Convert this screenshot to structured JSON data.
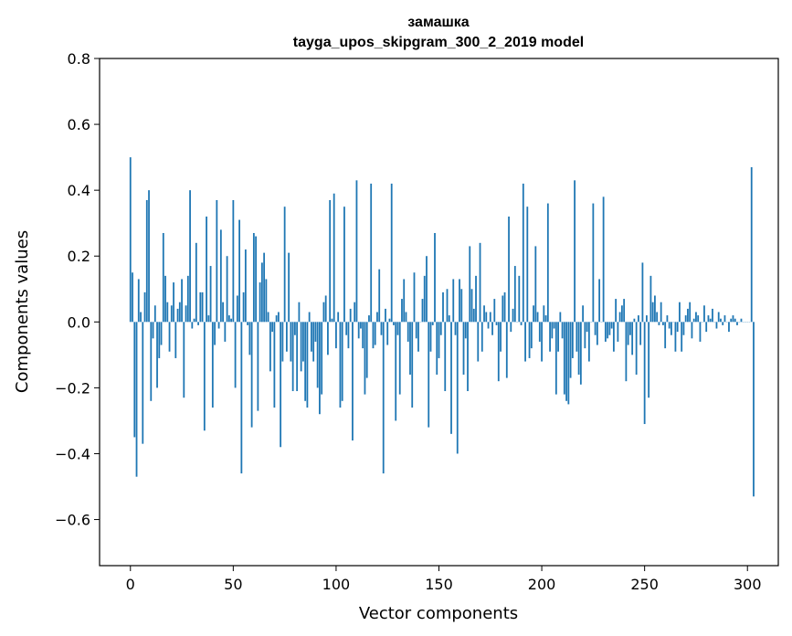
{
  "chart_data": {
    "type": "bar",
    "title": "замашка",
    "subtitle": "tayga_upos_skipgram_300_2_2019 model",
    "xlabel": "Vector components",
    "ylabel": "Components values",
    "xlim": [
      -15,
      315
    ],
    "ylim": [
      -0.74,
      0.8
    ],
    "xticks": [
      0,
      50,
      100,
      150,
      200,
      250,
      300
    ],
    "yticks": [
      -0.6,
      -0.4,
      -0.2,
      0.0,
      0.2,
      0.4,
      0.6,
      0.8
    ],
    "xtick_labels": [
      "0",
      "50",
      "100",
      "150",
      "200",
      "250",
      "300"
    ],
    "ytick_labels": [
      "−0.6",
      "−0.4",
      "−0.2",
      "0.0",
      "0.2",
      "0.4",
      "0.6",
      "0.8"
    ],
    "bar_color": "#1f77b4",
    "values": [
      0.5,
      0.15,
      -0.35,
      -0.47,
      0.13,
      0.03,
      -0.37,
      0.09,
      0.37,
      0.4,
      -0.24,
      -0.05,
      0.05,
      -0.2,
      -0.11,
      -0.07,
      0.27,
      0.14,
      0.06,
      -0.09,
      0.05,
      0.12,
      -0.11,
      0.04,
      0.06,
      0.13,
      -0.23,
      0.05,
      0.14,
      0.4,
      -0.02,
      0.01,
      0.24,
      -0.01,
      0.09,
      0.09,
      -0.33,
      0.32,
      0.02,
      0.17,
      -0.26,
      -0.07,
      0.37,
      -0.02,
      0.28,
      0.06,
      -0.06,
      0.2,
      0.02,
      0.01,
      0.37,
      -0.2,
      0.08,
      0.31,
      -0.46,
      0.09,
      0.22,
      -0.01,
      -0.1,
      -0.32,
      0.27,
      0.26,
      -0.27,
      0.12,
      0.18,
      0.21,
      0.13,
      0.03,
      -0.15,
      -0.03,
      -0.26,
      0.02,
      0.03,
      -0.38,
      -0.12,
      0.35,
      -0.09,
      0.21,
      -0.12,
      -0.21,
      -0.04,
      -0.21,
      0.06,
      -0.15,
      -0.12,
      -0.24,
      -0.26,
      0.03,
      -0.09,
      -0.12,
      -0.06,
      -0.2,
      -0.28,
      -0.22,
      0.06,
      0.08,
      -0.1,
      0.37,
      0.01,
      0.39,
      -0.08,
      0.03,
      -0.26,
      -0.24,
      0.35,
      -0.04,
      -0.08,
      0.04,
      -0.36,
      0.06,
      0.43,
      -0.05,
      -0.02,
      -0.08,
      -0.22,
      -0.17,
      0.02,
      0.42,
      -0.08,
      -0.07,
      0.03,
      0.16,
      -0.04,
      -0.46,
      0.04,
      -0.07,
      0.01,
      0.42,
      -0.01,
      -0.3,
      -0.04,
      -0.22,
      0.07,
      0.13,
      0.03,
      -0.06,
      -0.16,
      -0.26,
      0.15,
      -0.05,
      -0.09,
      0.0,
      0.07,
      0.14,
      0.2,
      -0.32,
      -0.09,
      -0.01,
      0.27,
      -0.16,
      -0.11,
      -0.04,
      0.09,
      -0.21,
      0.1,
      0.02,
      -0.34,
      0.13,
      -0.04,
      -0.4,
      0.13,
      0.1,
      -0.16,
      -0.05,
      -0.21,
      0.23,
      0.1,
      0.04,
      0.14,
      -0.12,
      0.24,
      -0.09,
      0.05,
      0.03,
      -0.02,
      0.03,
      -0.04,
      0.07,
      -0.01,
      -0.18,
      -0.09,
      0.08,
      0.09,
      -0.17,
      0.32,
      -0.03,
      0.04,
      0.17,
      0.0,
      0.14,
      -0.01,
      0.42,
      -0.12,
      0.35,
      -0.11,
      -0.08,
      0.05,
      0.23,
      0.03,
      -0.06,
      -0.12,
      0.05,
      0.02,
      0.36,
      -0.09,
      -0.05,
      -0.02,
      -0.22,
      -0.09,
      0.03,
      -0.05,
      -0.22,
      -0.24,
      -0.25,
      -0.17,
      -0.11,
      0.43,
      -0.09,
      -0.16,
      -0.19,
      0.05,
      -0.08,
      -0.03,
      -0.12,
      0.0,
      0.36,
      -0.04,
      -0.07,
      0.13,
      0.0,
      0.38,
      -0.06,
      -0.05,
      -0.04,
      -0.02,
      -0.09,
      0.07,
      -0.06,
      0.03,
      0.05,
      0.07,
      -0.18,
      -0.07,
      -0.04,
      -0.1,
      0.01,
      -0.16,
      0.02,
      -0.07,
      0.18,
      -0.31,
      0.02,
      -0.23,
      0.14,
      0.06,
      0.08,
      0.03,
      -0.01,
      0.06,
      -0.01,
      -0.08,
      0.02,
      -0.02,
      -0.04,
      0.0,
      -0.09,
      -0.03,
      0.06,
      -0.09,
      -0.04,
      0.02,
      0.04,
      0.06,
      -0.05,
      0.01,
      0.03,
      0.02,
      -0.06,
      0.0,
      0.05,
      -0.03,
      0.02,
      0.01,
      0.04,
      0.0,
      -0.02,
      0.03,
      0.01,
      -0.01,
      0.02,
      0.0,
      -0.03,
      0.01,
      0.02,
      0.01,
      -0.01,
      0.0,
      0.01,
      0.0,
      0.0,
      0.0,
      0.0,
      0.47,
      -0.53
    ]
  }
}
